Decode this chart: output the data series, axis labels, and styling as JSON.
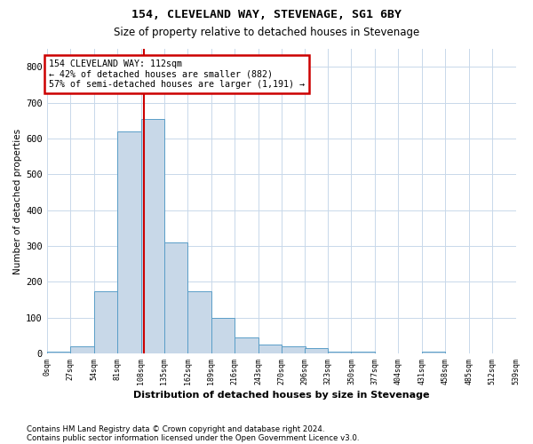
{
  "title": "154, CLEVELAND WAY, STEVENAGE, SG1 6BY",
  "subtitle": "Size of property relative to detached houses in Stevenage",
  "xlabel": "Distribution of detached houses by size in Stevenage",
  "ylabel": "Number of detached properties",
  "footnote1": "Contains HM Land Registry data © Crown copyright and database right 2024.",
  "footnote2": "Contains public sector information licensed under the Open Government Licence v3.0.",
  "annotation_title": "154 CLEVELAND WAY: 112sqm",
  "annotation_line1": "← 42% of detached houses are smaller (882)",
  "annotation_line2": "57% of semi-detached houses are larger (1,191) →",
  "property_size": 112,
  "bar_color": "#c8d8e8",
  "bar_edge_color": "#5a9ec8",
  "vline_color": "#cc0000",
  "annotation_box_color": "#cc0000",
  "grid_color": "#c8d8ea",
  "bin_edges": [
    0,
    27,
    54,
    81,
    108,
    135,
    162,
    189,
    216,
    243,
    270,
    296,
    323,
    350,
    377,
    404,
    431,
    458,
    485,
    512,
    539
  ],
  "bin_heights": [
    5,
    20,
    175,
    620,
    655,
    310,
    175,
    100,
    45,
    25,
    20,
    15,
    5,
    5,
    0,
    0,
    5,
    0,
    0,
    0
  ],
  "ylim": [
    0,
    850
  ],
  "yticks": [
    0,
    100,
    200,
    300,
    400,
    500,
    600,
    700,
    800
  ]
}
